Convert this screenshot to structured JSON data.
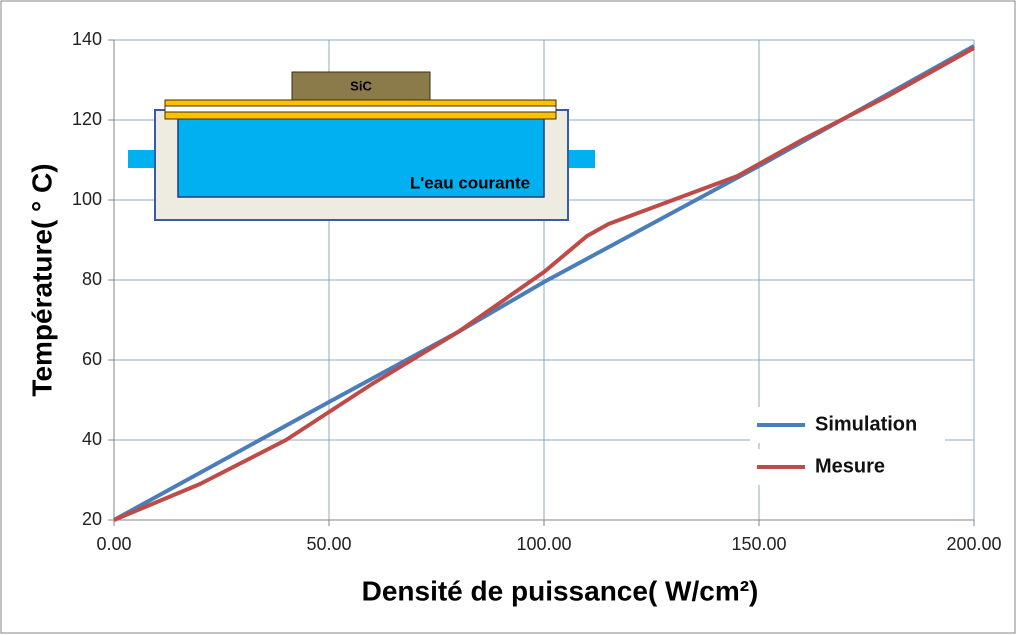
{
  "chart_data": {
    "type": "line",
    "xlabel": "Densité de puissance( W/cm²)",
    "ylabel": "Température( °  C)",
    "annotations": [
      "SiC",
      "L'eau courante"
    ],
    "xlim": [
      0,
      200
    ],
    "ylim": [
      20,
      140
    ],
    "xticks": [
      {
        "value": 0,
        "label": "0.00"
      },
      {
        "value": 50,
        "label": "50.00"
      },
      {
        "value": 100,
        "label": "100.00"
      },
      {
        "value": 150,
        "label": "150.00"
      },
      {
        "value": 200,
        "label": "200.00"
      }
    ],
    "yticks": [
      20,
      40,
      60,
      80,
      100,
      120,
      140
    ],
    "grid": true,
    "legend": "lower right",
    "series": [
      {
        "name": "Simulation",
        "color": "#4a7ebb",
        "x": [
          0,
          50,
          80,
          100,
          150,
          200
        ],
        "values": [
          20,
          49.5,
          67,
          79.5,
          108.5,
          138.5
        ]
      },
      {
        "name": "Mesure",
        "color": "#be4b48",
        "x": [
          0,
          20,
          40,
          60,
          80,
          100,
          110,
          115,
          130,
          145,
          160,
          180,
          200
        ],
        "values": [
          20,
          29,
          40,
          54,
          67,
          82,
          91,
          94,
          100,
          106,
          115,
          126,
          138
        ]
      }
    ]
  }
}
